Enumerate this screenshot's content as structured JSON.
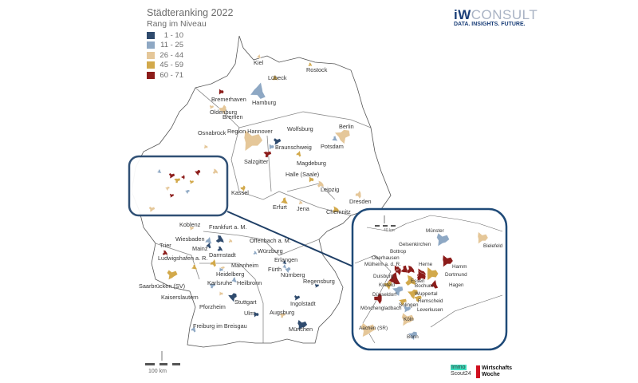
{
  "title": "Städteranking 2022",
  "subtitle": "Rang im Niveau",
  "legend": [
    {
      "label": "1 - 10",
      "color": "#2f4b6e"
    },
    {
      "label": "11 - 25",
      "color": "#8ea8c4"
    },
    {
      "label": "26 - 44",
      "color": "#e5c799"
    },
    {
      "label": "45 - 59",
      "color": "#d2a94b"
    },
    {
      "label": "60 - 71",
      "color": "#8c1c1a"
    }
  ],
  "branding": {
    "iw": "iW",
    "consult": "CONSULT",
    "tagline": "DATA. INSIGHTS. FUTURE.",
    "immo_top": "Immo",
    "immo_bottom": "Scout24",
    "wiwo_top": "Wirtschafts",
    "wiwo_bottom": "Woche"
  },
  "scale": {
    "main": "100 km",
    "inset": "40 km",
    "north": "N"
  },
  "cities": [
    {
      "name": "Kiel",
      "group": 2
    },
    {
      "name": "Rostock",
      "group": 3
    },
    {
      "name": "Lübeck",
      "group": 3
    },
    {
      "name": "Hamburg",
      "group": 1
    },
    {
      "name": "Bremerhaven",
      "group": 4
    },
    {
      "name": "Oldenburg",
      "group": 2
    },
    {
      "name": "Bremen",
      "group": 2
    },
    {
      "name": "Osnabrück",
      "group": 2
    },
    {
      "name": "Region Hannover",
      "group": 2
    },
    {
      "name": "Wolfsburg",
      "group": 0
    },
    {
      "name": "Braunschweig",
      "group": 1
    },
    {
      "name": "Salzgitter",
      "group": 4
    },
    {
      "name": "Berlin",
      "group": 2
    },
    {
      "name": "Potsdam",
      "group": 1
    },
    {
      "name": "Magdeburg",
      "group": 3
    },
    {
      "name": "Halle (Saale)",
      "group": 3
    },
    {
      "name": "Leipzig",
      "group": 2
    },
    {
      "name": "Dresden",
      "group": 2
    },
    {
      "name": "Chemnitz",
      "group": 3
    },
    {
      "name": "Kassel",
      "group": 3
    },
    {
      "name": "Erfurt",
      "group": 3
    },
    {
      "name": "Jena",
      "group": 2
    },
    {
      "name": "Koblenz",
      "group": 2
    },
    {
      "name": "Frankfurt a. M.",
      "group": 0
    },
    {
      "name": "Wiesbaden",
      "group": 1
    },
    {
      "name": "Offenbach a. M.",
      "group": 2
    },
    {
      "name": "Mainz",
      "group": 0
    },
    {
      "name": "Darmstadt",
      "group": 0
    },
    {
      "name": "Würzburg",
      "group": 1
    },
    {
      "name": "Trier",
      "group": 4
    },
    {
      "name": "Ludwigshafen a. R.",
      "group": 3
    },
    {
      "name": "Mannheim",
      "group": 2
    },
    {
      "name": "Erlangen",
      "group": 0
    },
    {
      "name": "Heidelberg",
      "group": 1
    },
    {
      "name": "Fürth",
      "group": 1
    },
    {
      "name": "Nürnberg",
      "group": 1
    },
    {
      "name": "Saarbrücken (SV)",
      "group": 3
    },
    {
      "name": "Kaiserslautern",
      "group": 3
    },
    {
      "name": "Karlsruhe",
      "group": 1
    },
    {
      "name": "Heilbronn",
      "group": 1
    },
    {
      "name": "Regensburg",
      "group": 0
    },
    {
      "name": "Pforzheim",
      "group": 2
    },
    {
      "name": "Stuttgart",
      "group": 0
    },
    {
      "name": "Ingolstadt",
      "group": 0
    },
    {
      "name": "Ulm",
      "group": 0
    },
    {
      "name": "Augsburg",
      "group": 2
    },
    {
      "name": "Freiburg im Breisgau",
      "group": 1
    },
    {
      "name": "München",
      "group": 0
    }
  ],
  "inset_cities": [
    {
      "name": "Münster",
      "group": 1
    },
    {
      "name": "Bielefeld",
      "group": 2
    },
    {
      "name": "Gelsenkirchen",
      "group": 4
    },
    {
      "name": "Bottrop",
      "group": 4
    },
    {
      "name": "Oberhausen",
      "group": 4
    },
    {
      "name": "Mülheim a. d. R.",
      "group": 4
    },
    {
      "name": "Herne",
      "group": 4
    },
    {
      "name": "Hamm",
      "group": 4
    },
    {
      "name": "Dortmund",
      "group": 3
    },
    {
      "name": "Duisburg",
      "group": 4
    },
    {
      "name": "Essen",
      "group": 3
    },
    {
      "name": "Hagen",
      "group": 4
    },
    {
      "name": "Bochum",
      "group": 4
    },
    {
      "name": "Krefeld",
      "group": 3
    },
    {
      "name": "Düsseldorf",
      "group": 1
    },
    {
      "name": "Wuppertal",
      "group": 3
    },
    {
      "name": "Remscheid",
      "group": 3
    },
    {
      "name": "Solingen",
      "group": 3
    },
    {
      "name": "Mönchengladbach",
      "group": 4
    },
    {
      "name": "Leverkusen",
      "group": 1
    },
    {
      "name": "Köln",
      "group": 2
    },
    {
      "name": "Aachen (SR)",
      "group": 2
    },
    {
      "name": "Bonn",
      "group": 1
    }
  ]
}
